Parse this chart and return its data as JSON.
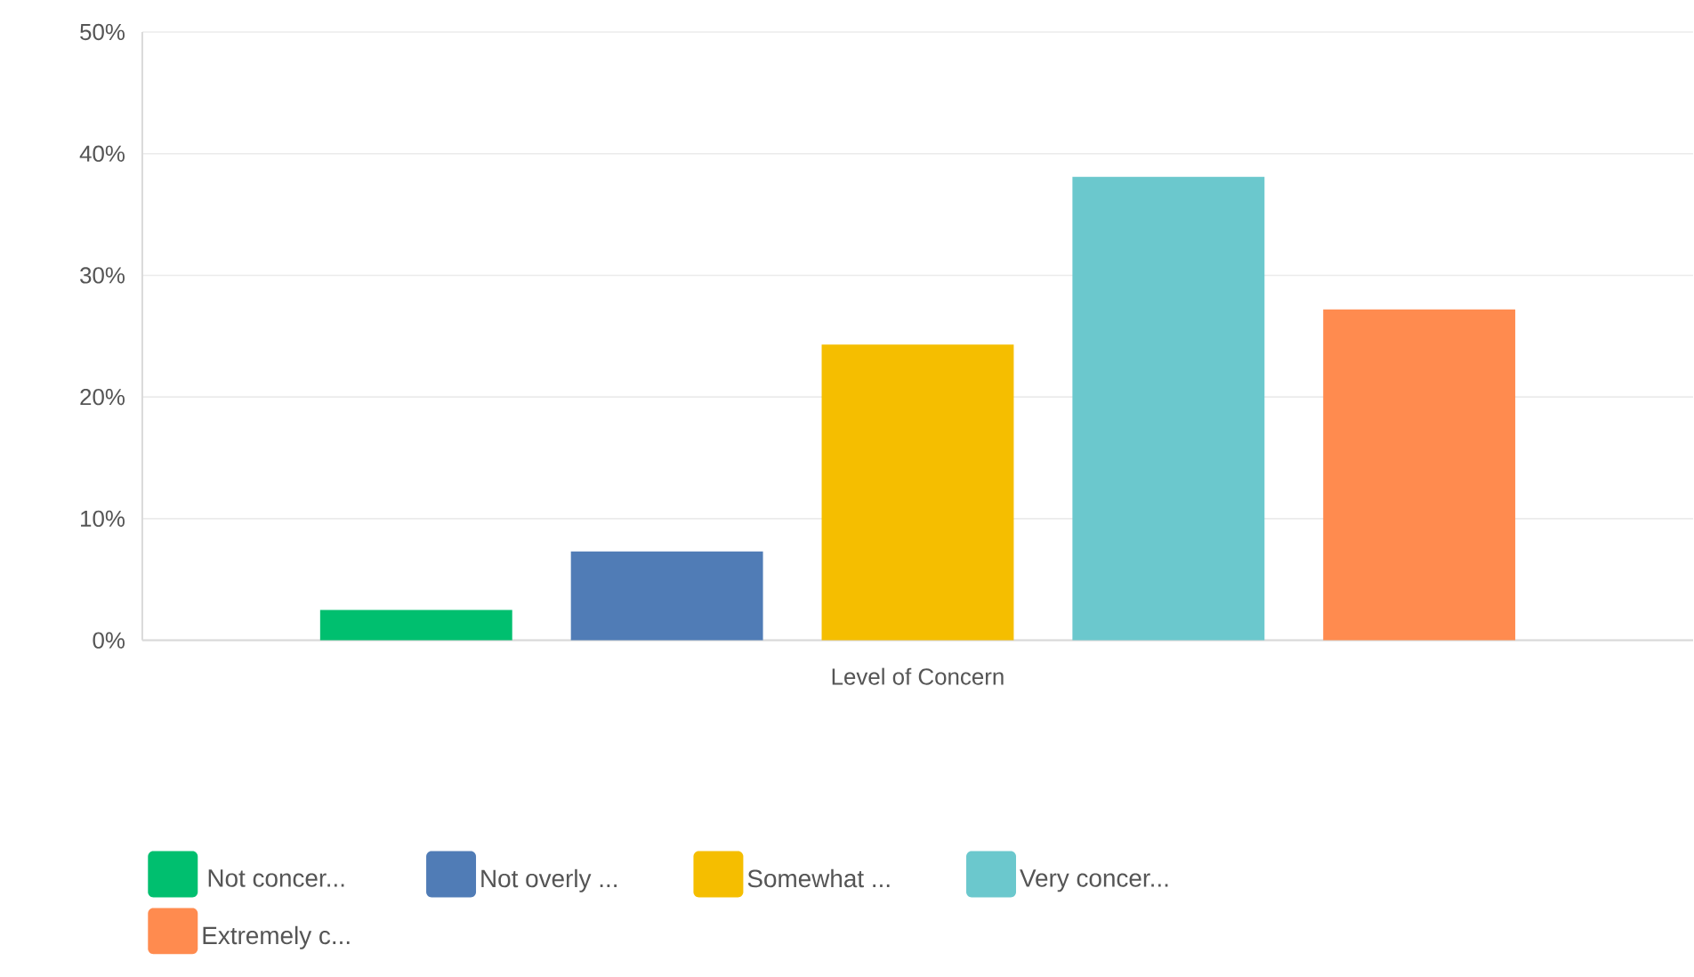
{
  "chart_data": {
    "type": "bar",
    "categories": [
      "Level of Concern"
    ],
    "series": [
      {
        "name": "Not concer...",
        "color": "#00bf6f",
        "values": [
          2.5
        ]
      },
      {
        "name": "Not overly ...",
        "color": "#507cb6",
        "values": [
          7.3
        ]
      },
      {
        "name": "Somewhat ...",
        "color": "#f5be00",
        "values": [
          24.3
        ]
      },
      {
        "name": "Very concer...",
        "color": "#6bc8cd",
        "values": [
          38.1
        ]
      },
      {
        "name": "Extremely c...",
        "color": "#ff8b4f",
        "values": [
          27.2
        ]
      }
    ],
    "ylim": [
      0,
      50
    ],
    "yticks": [
      {
        "value": 0,
        "label": "0%"
      },
      {
        "value": 10,
        "label": "10%"
      },
      {
        "value": 20,
        "label": "20%"
      },
      {
        "value": 30,
        "label": "30%"
      },
      {
        "value": 40,
        "label": "40%"
      },
      {
        "value": 50,
        "label": "50%"
      }
    ],
    "grid": "y",
    "legend": "bottom"
  }
}
